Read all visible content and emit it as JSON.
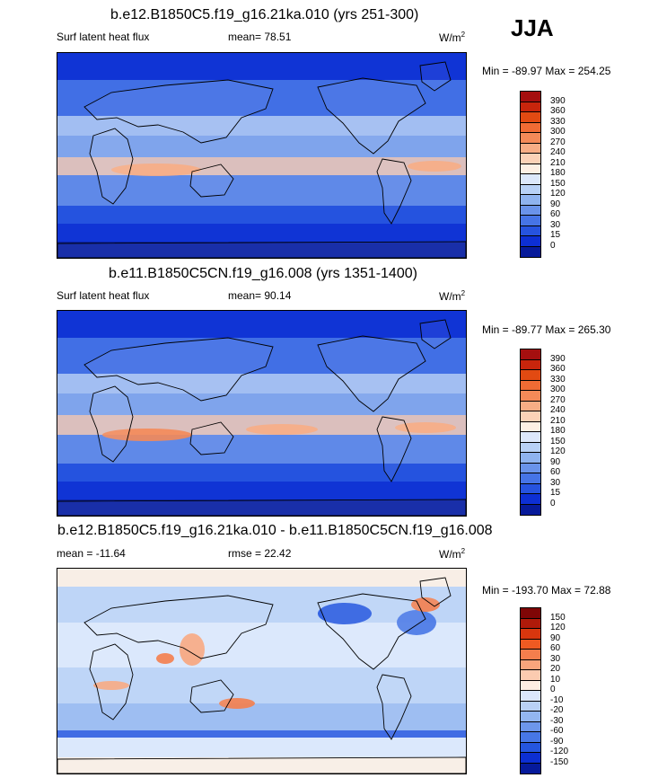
{
  "season": "JJA",
  "panels": [
    {
      "title": "b.e12.B1850C5.f19_g16.21ka.010 (yrs 251-300)",
      "left_label": "Surf latent heat flux",
      "center_label": "mean=  78.51",
      "units": "W/m",
      "units_exp": "2",
      "minmax": "Min = -89.97 Max = 254.25",
      "colorbar_labels": [
        "390",
        "360",
        "330",
        "300",
        "270",
        "240",
        "210",
        "180",
        "150",
        "120",
        "90",
        "60",
        "30",
        "15",
        "0"
      ],
      "colors": [
        "#a50f0f",
        "#c8250c",
        "#e24a12",
        "#f06b34",
        "#f48a58",
        "#f7ad85",
        "#fbd2b7",
        "#fdf0e4",
        "#dce8fb",
        "#b8d1f6",
        "#8fb3ef",
        "#6a93ea",
        "#4674e6",
        "#2653df",
        "#0d2fd4",
        "#071a9a"
      ]
    },
    {
      "title": "b.e11.B1850C5CN.f19_g16.008 (yrs 1351-1400)",
      "left_label": "Surf latent heat flux",
      "center_label": "mean=  90.14",
      "units": "W/m",
      "units_exp": "2",
      "minmax": "Min = -89.77 Max = 265.30",
      "colorbar_labels": [
        "390",
        "360",
        "330",
        "300",
        "270",
        "240",
        "210",
        "180",
        "150",
        "120",
        "90",
        "60",
        "30",
        "15",
        "0"
      ],
      "colors": [
        "#a50f0f",
        "#c8250c",
        "#e24a12",
        "#f06b34",
        "#f48a58",
        "#f7ad85",
        "#fbd2b7",
        "#fdf0e4",
        "#dce8fb",
        "#b8d1f6",
        "#8fb3ef",
        "#6a93ea",
        "#4674e6",
        "#2653df",
        "#0d2fd4",
        "#071a9a"
      ]
    },
    {
      "title": "b.e12.B1850C5.f19_g16.21ka.010 - b.e11.B1850C5CN.f19_g16.008",
      "left_label": "mean = -11.64",
      "center_label": "rmse =  22.42",
      "units": "W/m",
      "units_exp": "2",
      "minmax": "Min = -193.70 Max =  72.88",
      "colorbar_labels": [
        "150",
        "120",
        "90",
        "60",
        "30",
        "20",
        "10",
        "0",
        "-10",
        "-20",
        "-30",
        "-60",
        "-90",
        "-120",
        "-150"
      ],
      "colors": [
        "#7f0606",
        "#b01a0a",
        "#d8360e",
        "#ef5a22",
        "#f47e4d",
        "#f8a57c",
        "#fbcbb0",
        "#fdeee2",
        "#dbe7fb",
        "#b9d1f6",
        "#93b6f0",
        "#6d96ea",
        "#4777e6",
        "#2556df",
        "#0c2fd2",
        "#061a9b"
      ]
    }
  ],
  "chart_data": [
    {
      "type": "heatmap",
      "title": "b.e12.B1850C5.f19_g16.21ka.010 (yrs 251-300)",
      "variable": "Surf latent heat flux",
      "season": "JJA",
      "units": "W/m2",
      "mean": 78.51,
      "min": -89.97,
      "max": 254.25,
      "contour_levels": [
        0,
        15,
        30,
        60,
        90,
        120,
        150,
        180,
        210,
        240,
        270,
        300,
        330,
        360,
        390
      ]
    },
    {
      "type": "heatmap",
      "title": "b.e11.B1850C5CN.f19_g16.008 (yrs 1351-1400)",
      "variable": "Surf latent heat flux",
      "season": "JJA",
      "units": "W/m2",
      "mean": 90.14,
      "min": -89.77,
      "max": 265.3,
      "contour_levels": [
        0,
        15,
        30,
        60,
        90,
        120,
        150,
        180,
        210,
        240,
        270,
        300,
        330,
        360,
        390
      ]
    },
    {
      "type": "heatmap",
      "title": "b.e12.B1850C5.f19_g16.21ka.010 - b.e11.B1850C5CN.f19_g16.008",
      "season": "JJA",
      "units": "W/m2",
      "mean": -11.64,
      "rmse": 22.42,
      "min": -193.7,
      "max": 72.88,
      "contour_levels": [
        -150,
        -120,
        -90,
        -60,
        -30,
        -20,
        -10,
        0,
        10,
        20,
        30,
        60,
        90,
        120,
        150
      ]
    }
  ]
}
